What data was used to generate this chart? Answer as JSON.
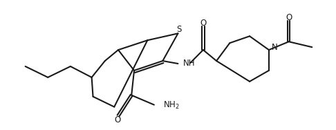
{
  "bg_color": "#ffffff",
  "line_color": "#1a1a1a",
  "line_width": 1.5,
  "font_size": 8.5,
  "figsize": [
    4.86,
    1.88
  ],
  "dpi": 100,
  "xlim": [
    0,
    10
  ],
  "ylim": [
    0,
    4
  ]
}
